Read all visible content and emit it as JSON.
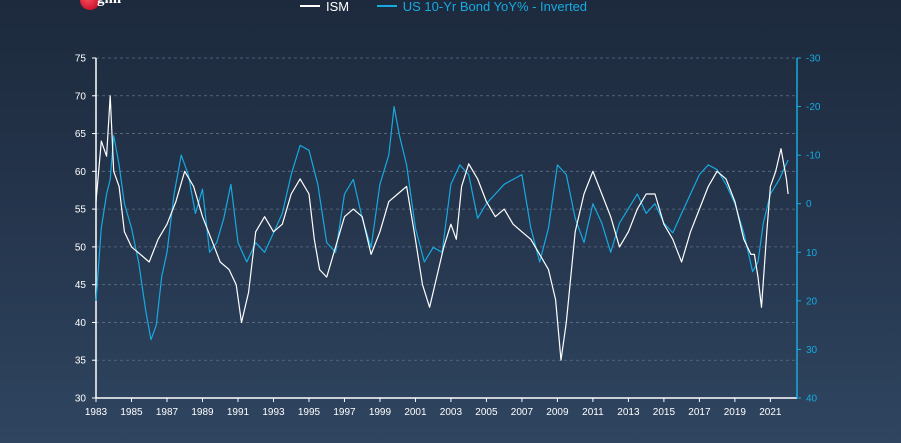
{
  "logo": {
    "text": "gmi"
  },
  "legend": [
    {
      "label": "ISM",
      "color": "#ffffff"
    },
    {
      "label": "US 10-Yr Bond YoY% - Inverted",
      "color": "#17a9e1"
    }
  ],
  "chart_data": {
    "type": "line",
    "title": "",
    "xlabel": "",
    "ylabel": "",
    "grid": "horizontal-dashed",
    "legend_placement": "top",
    "xlim": [
      1983,
      2022.5
    ],
    "x_ticks": [
      "1983",
      "1985",
      "1987",
      "1989",
      "1991",
      "1993",
      "1995",
      "1997",
      "1999",
      "2001",
      "2003",
      "2005",
      "2007",
      "2009",
      "2011",
      "2013",
      "2015",
      "2017",
      "2019",
      "2021"
    ],
    "left_axis": {
      "ylim": [
        30,
        75
      ],
      "ticks": [
        "30",
        "35",
        "40",
        "45",
        "50",
        "55",
        "60",
        "65",
        "70",
        "75"
      ]
    },
    "right_axis": {
      "ylim": [
        40,
        -30
      ],
      "inverted": true,
      "ticks": [
        "-30",
        "-20",
        "-10",
        "0",
        "10",
        "20",
        "30",
        "40"
      ]
    },
    "series": [
      {
        "name": "ISM",
        "axis": "left",
        "color": "#ffffff",
        "x": [
          1983.0,
          1983.3,
          1983.6,
          1983.8,
          1984.0,
          1984.3,
          1984.6,
          1985.0,
          1985.5,
          1986.0,
          1986.5,
          1987.0,
          1987.5,
          1988.0,
          1988.5,
          1989.0,
          1989.5,
          1990.0,
          1990.5,
          1990.9,
          1991.2,
          1991.6,
          1992.0,
          1992.5,
          1993.0,
          1993.5,
          1994.0,
          1994.5,
          1995.0,
          1995.3,
          1995.6,
          1996.0,
          1996.5,
          1997.0,
          1997.5,
          1998.0,
          1998.5,
          1999.0,
          1999.5,
          2000.0,
          2000.5,
          2001.0,
          2001.4,
          2001.8,
          2002.2,
          2002.6,
          2003.0,
          2003.3,
          2003.6,
          2004.0,
          2004.5,
          2005.0,
          2005.5,
          2006.0,
          2006.5,
          2007.0,
          2007.5,
          2008.0,
          2008.5,
          2008.9,
          2009.2,
          2009.5,
          2010.0,
          2010.5,
          2011.0,
          2011.5,
          2012.0,
          2012.5,
          2013.0,
          2013.5,
          2014.0,
          2014.5,
          2015.0,
          2015.5,
          2016.0,
          2016.5,
          2017.0,
          2017.5,
          2018.0,
          2018.5,
          2019.0,
          2019.5,
          2019.9,
          2020.1,
          2020.3,
          2020.5,
          2020.8,
          2021.0,
          2021.3,
          2021.6,
          2021.9,
          2022.0
        ],
        "values": [
          56,
          64,
          62,
          70,
          60,
          58,
          52,
          50,
          49,
          48,
          51,
          53,
          56,
          60,
          58,
          54,
          51,
          48,
          47,
          45,
          40,
          44,
          52,
          54,
          52,
          53,
          57,
          59,
          57,
          51,
          47,
          46,
          50,
          54,
          55,
          54,
          49,
          52,
          56,
          57,
          58,
          51,
          45,
          42,
          46,
          50,
          53,
          51,
          58,
          61,
          59,
          56,
          54,
          55,
          53,
          52,
          51,
          49,
          47,
          43,
          35,
          40,
          52,
          57,
          60,
          57,
          54,
          50,
          52,
          55,
          57,
          57,
          53,
          51,
          48,
          52,
          55,
          58,
          60,
          59,
          56,
          51,
          49,
          49,
          46,
          42,
          52,
          58,
          60,
          63,
          59,
          57
        ]
      },
      {
        "name": "US 10-Yr Bond YoY% - Inverted",
        "axis": "right",
        "color": "#17a9e1",
        "x": [
          1983.0,
          1983.3,
          1983.6,
          1983.8,
          1984.0,
          1984.3,
          1984.6,
          1985.0,
          1985.4,
          1985.8,
          1986.1,
          1986.4,
          1986.7,
          1987.0,
          1987.4,
          1987.8,
          1988.2,
          1988.6,
          1989.0,
          1989.4,
          1989.8,
          1990.2,
          1990.6,
          1991.0,
          1991.5,
          1992.0,
          1992.5,
          1993.0,
          1993.5,
          1994.0,
          1994.5,
          1995.0,
          1995.5,
          1996.0,
          1996.5,
          1997.0,
          1997.5,
          1998.0,
          1998.5,
          1999.0,
          1999.5,
          1999.8,
          2000.1,
          2000.5,
          2001.0,
          2001.5,
          2002.0,
          2002.5,
          2003.0,
          2003.5,
          2004.0,
          2004.5,
          2005.0,
          2005.5,
          2006.0,
          2006.5,
          2007.0,
          2007.5,
          2008.0,
          2008.5,
          2009.0,
          2009.5,
          2010.0,
          2010.5,
          2011.0,
          2011.5,
          2012.0,
          2012.5,
          2013.0,
          2013.5,
          2014.0,
          2014.5,
          2015.0,
          2015.5,
          2016.0,
          2016.5,
          2017.0,
          2017.5,
          2018.0,
          2018.5,
          2019.0,
          2019.5,
          2020.0,
          2020.3,
          2020.6,
          2021.0,
          2021.5,
          2022.0
        ],
        "values": [
          20,
          5,
          -2,
          -5,
          -14,
          -8,
          0,
          5,
          12,
          22,
          28,
          25,
          15,
          10,
          -2,
          -10,
          -6,
          2,
          -3,
          10,
          8,
          3,
          -4,
          8,
          12,
          8,
          10,
          6,
          2,
          -6,
          -12,
          -11,
          -4,
          8,
          10,
          -2,
          -5,
          3,
          9,
          -4,
          -10,
          -20,
          -14,
          -8,
          5,
          12,
          9,
          10,
          -4,
          -8,
          -6,
          3,
          0,
          -2,
          -4,
          -5,
          -6,
          5,
          12,
          5,
          -8,
          -6,
          3,
          8,
          0,
          4,
          10,
          4,
          1,
          -2,
          2,
          0,
          4,
          6,
          2,
          -2,
          -6,
          -8,
          -7,
          -4,
          0,
          6,
          14,
          12,
          4,
          -2,
          -5,
          -9
        ]
      }
    ]
  }
}
